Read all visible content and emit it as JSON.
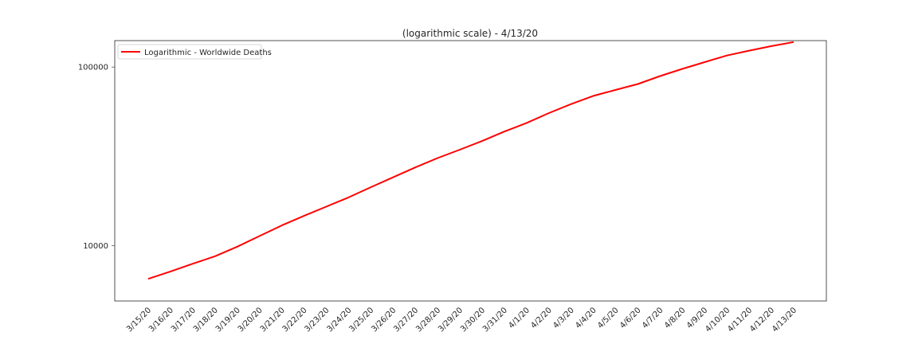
{
  "chart_data": {
    "type": "line",
    "title": "(logarithmic scale) - 4/13/20",
    "xlabel": "",
    "ylabel": "",
    "yscale": "log",
    "ylim": [
      5700,
      138000
    ],
    "yticks": [
      10000,
      100000
    ],
    "ytick_labels": [
      "10000",
      "100000"
    ],
    "grid": false,
    "legend_position": "upper left",
    "categories": [
      "3/15/20",
      "3/16/20",
      "3/17/20",
      "3/18/20",
      "3/19/20",
      "3/20/20",
      "3/21/20",
      "3/22/20",
      "3/23/20",
      "3/24/20",
      "3/25/20",
      "3/26/20",
      "3/27/20",
      "3/28/20",
      "3/29/20",
      "3/30/20",
      "3/31/20",
      "4/1/20",
      "4/2/20",
      "4/3/20",
      "4/4/20",
      "4/5/20",
      "4/6/20",
      "4/7/20",
      "4/8/20",
      "4/9/20",
      "4/10/20",
      "4/11/20",
      "4/12/20",
      "4/13/20"
    ],
    "series": [
      {
        "name": "Logarithmic - Worldwide Deaths",
        "color": "#ff0000",
        "values": [
          6500,
          7150,
          7900,
          8700,
          9850,
          11300,
          12950,
          14650,
          16500,
          18600,
          21200,
          24100,
          27400,
          30900,
          34400,
          38500,
          43500,
          48600,
          55200,
          62000,
          68900,
          74400,
          80300,
          89000,
          97600,
          106500,
          116000,
          123500,
          131000,
          138000
        ]
      }
    ],
    "colors": {
      "axes_edge": "#262626",
      "text": "#262626",
      "background": "#ffffff"
    }
  }
}
